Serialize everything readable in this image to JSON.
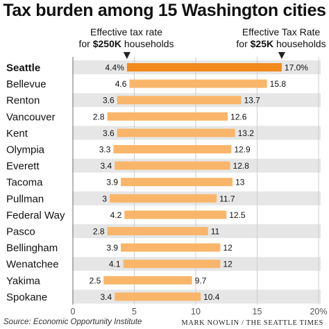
{
  "chart_data": {
    "type": "bar",
    "title": "Tax burden among 15 Washington cities",
    "series_headers": {
      "left": {
        "line1": "Effective tax rate",
        "line2_prefix": "for ",
        "line2_bold": "$250K",
        "line2_suffix": " households"
      },
      "right": {
        "line1": "Effective Tax Rate",
        "line2_prefix": "for ",
        "line2_bold": "$25K",
        "line2_suffix": " households"
      }
    },
    "categories": [
      "Seattle",
      "Bellevue",
      "Renton",
      "Vancouver",
      "Kent",
      "Olympia",
      "Everett",
      "Tacoma",
      "Pullman",
      "Federal Way",
      "Pasco",
      "Bellingham",
      "Wenatchee",
      "Yakima",
      "Spokane"
    ],
    "series": [
      {
        "name": "Effective tax rate for $250K households",
        "values": [
          4.4,
          4.6,
          3.6,
          2.8,
          3.6,
          3.3,
          3.4,
          3.9,
          3,
          4.2,
          2.8,
          3.9,
          4.1,
          2.5,
          3.4
        ],
        "labels": [
          "4.4%",
          "4.6",
          "3.6",
          "2.8",
          "3.6",
          "3.3",
          "3.4",
          "3.9",
          "3",
          "4.2",
          "2.8",
          "3.9",
          "4.1",
          "2.5",
          "3.4"
        ]
      },
      {
        "name": "Effective Tax Rate for $25K households",
        "values": [
          17.0,
          15.8,
          13.7,
          12.6,
          13.2,
          12.9,
          12.8,
          13,
          11.7,
          12.5,
          11,
          12,
          12,
          9.7,
          10.4
        ],
        "labels": [
          "17.0%",
          "15.8",
          "13.7",
          "12.6",
          "13.2",
          "12.9",
          "12.8",
          "13",
          "11.7",
          "12.5",
          "11",
          "12",
          "12",
          "9.7",
          "10.4"
        ]
      }
    ],
    "highlight": "Seattle",
    "x_ticks": [
      "0",
      "5",
      "10",
      "15",
      "20%"
    ],
    "xlim": [
      0,
      20
    ],
    "grid": true,
    "colors": {
      "bar": "#f9b66a",
      "bar_highlight": "#f28a1e",
      "band": "#e6e6e6",
      "grid": "#cccccc",
      "marker": "#222222"
    }
  },
  "footer": {
    "source": "Source: Economic Opportunity Institute",
    "credit": "MARK NOWLIN / THE SEATTLE TIMES"
  }
}
